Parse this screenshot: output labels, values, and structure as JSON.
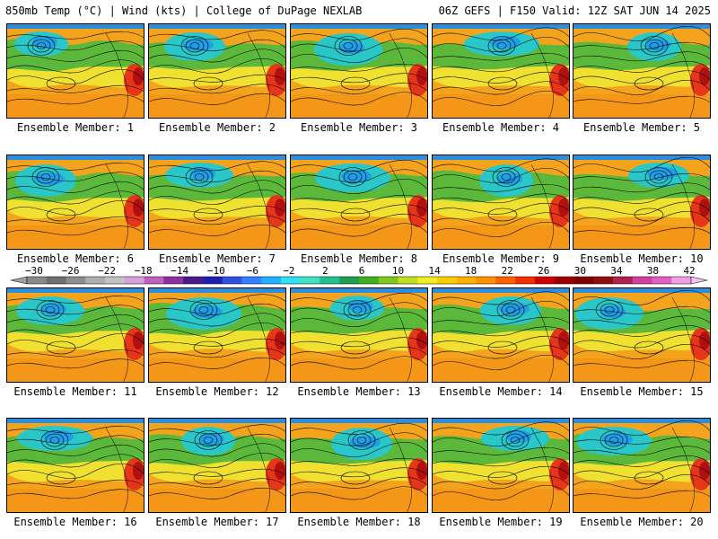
{
  "header": {
    "left_title": "850mb Temp (°C) | Wind (kts) | College of DuPage NEXLAB",
    "right_title": "06Z GEFS | F150 Valid: 12Z SAT JUN 14 2025"
  },
  "colorbar": {
    "labels": [
      "−30",
      "−26",
      "−22",
      "−18",
      "−14",
      "−10",
      "−6",
      "−2",
      "2",
      "6",
      "10",
      "14",
      "18",
      "22",
      "26",
      "30",
      "34",
      "38",
      "42"
    ],
    "colors": [
      "#8a8a8a",
      "#6f6f6f",
      "#8e8e8e",
      "#adadad",
      "#c2c2c2",
      "#d8a0d8",
      "#c060c0",
      "#9030a0",
      "#4a1a8a",
      "#2020b0",
      "#3050e0",
      "#3080ff",
      "#20b0ff",
      "#30e0f0",
      "#40e0c0",
      "#20c090",
      "#20a050",
      "#40b020",
      "#80c820",
      "#c0e020",
      "#f0f020",
      "#f8d000",
      "#ffb000",
      "#ff9000",
      "#ff6000",
      "#f03000",
      "#d00000",
      "#a00000",
      "#800000",
      "#901010",
      "#b02050",
      "#d040a0",
      "#e060c0",
      "#f0a0e0"
    ]
  },
  "members": [
    {
      "label": "Ensemble Member: 1"
    },
    {
      "label": "Ensemble Member: 2"
    },
    {
      "label": "Ensemble Member: 3"
    },
    {
      "label": "Ensemble Member: 4"
    },
    {
      "label": "Ensemble Member: 5"
    },
    {
      "label": "Ensemble Member: 6"
    },
    {
      "label": "Ensemble Member: 7"
    },
    {
      "label": "Ensemble Member: 8"
    },
    {
      "label": "Ensemble Member: 9"
    },
    {
      "label": "Ensemble Member: 10"
    },
    {
      "label": "Ensemble Member: 11"
    },
    {
      "label": "Ensemble Member: 12"
    },
    {
      "label": "Ensemble Member: 13"
    },
    {
      "label": "Ensemble Member: 14"
    },
    {
      "label": "Ensemble Member: 15"
    },
    {
      "label": "Ensemble Member: 16"
    },
    {
      "label": "Ensemble Member: 17"
    },
    {
      "label": "Ensemble Member: 18"
    },
    {
      "label": "Ensemble Member: 19"
    },
    {
      "label": "Ensemble Member: 20"
    }
  ]
}
